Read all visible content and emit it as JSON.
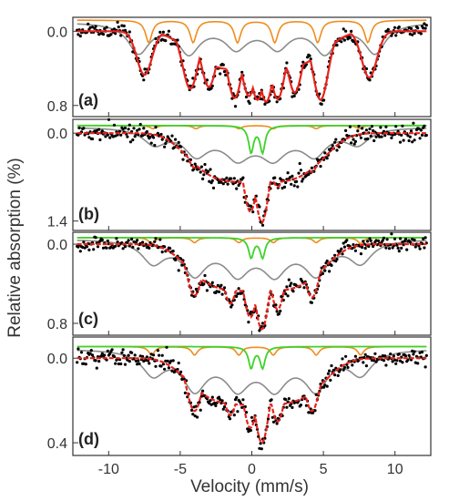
{
  "chart_data": {
    "type": "scatter",
    "ylabel": "Relative absorption (%)",
    "xlabel": "Velocity (mm/s)",
    "xlim": [
      -12.5,
      12.5
    ],
    "xticks": [
      -10,
      -5,
      0,
      5,
      10
    ],
    "colors": {
      "points": "#000000",
      "fit": "#e8221b",
      "gray_component": "#8c8c8c",
      "orange_component": "#f08c1e",
      "green_component": "#3ed22a"
    },
    "panels": [
      {
        "label": "(a)",
        "ylim": [
          0.92,
          -0.15
        ],
        "yticks": [
          0.0,
          0.8
        ],
        "ytick_labels": [
          "0.0",
          "0.8"
        ],
        "data": {
          "gray_sextet": {
            "center": 0.35,
            "lines": [
              -7.9,
              -4.4,
              -1.1,
              1.8,
              5.1,
              8.6
            ],
            "depths": [
              0.32,
              0.3,
              0.22,
              0.22,
              0.3,
              0.32
            ],
            "width": 1.8,
            "envelope_depth": 0.05
          },
          "orange_sextet": {
            "lines": [
              -7.2,
              -4.1,
              -1.0,
              1.6,
              4.6,
              8.1
            ],
            "depths": [
              0.24,
              0.24,
              0.24,
              0.24,
              0.24,
              0.24
            ],
            "width": 0.55
          },
          "fit_dips": [
            {
              "x": -7.5,
              "depth": 0.47
            },
            {
              "x": -4.3,
              "depth": 0.62
            },
            {
              "x": -3.0,
              "depth": 0.6
            },
            {
              "x": -1.2,
              "depth": 0.72
            },
            {
              "x": -0.2,
              "depth": 0.7
            },
            {
              "x": 0.4,
              "depth": 0.74
            },
            {
              "x": 1.0,
              "depth": 0.76
            },
            {
              "x": 1.8,
              "depth": 0.73
            },
            {
              "x": 3.0,
              "depth": 0.66
            },
            {
              "x": 4.8,
              "depth": 0.74
            },
            {
              "x": 8.2,
              "depth": 0.5
            }
          ]
        }
      },
      {
        "label": "(b)",
        "ylim": [
          1.55,
          -0.22
        ],
        "yticks": [
          0.0,
          1.4
        ],
        "ytick_labels": [
          "0.0",
          "1.4"
        ],
        "data": {
          "gray_sextet": {
            "lines": [
              -6.8,
              -3.9,
              -1.0,
              1.5,
              4.4,
              7.4
            ],
            "depths": [
              0.24,
              0.34,
              0.3,
              0.3,
              0.34,
              0.24
            ],
            "width": 1.9,
            "envelope_depth": 0.2
          },
          "orange_sextet": {
            "lines": [
              -6.9,
              -3.9,
              -0.9,
              1.5,
              4.5,
              7.5
            ],
            "depths": [
              0.05,
              0.05,
              0.05,
              0.05,
              0.05,
              0.05
            ],
            "width": 0.5
          },
          "green_doublet": {
            "lines": [
              -0.05,
              0.75
            ],
            "depth": 0.42,
            "width": 0.42
          },
          "fit_dips": [
            {
              "x": -4.0,
              "depth": 0.55
            },
            {
              "x": -1.5,
              "depth": 0.78
            },
            {
              "x": -0.1,
              "depth": 1.25
            },
            {
              "x": 0.7,
              "depth": 1.42
            },
            {
              "x": 1.8,
              "depth": 0.86
            },
            {
              "x": 4.2,
              "depth": 0.62
            }
          ]
        }
      },
      {
        "label": "(c)",
        "ylim": [
          0.92,
          -0.12
        ],
        "yticks": [
          0.0,
          0.8
        ],
        "ytick_labels": [
          "0.0",
          "0.8"
        ],
        "data": {
          "gray_sextet": {
            "lines": [
              -6.9,
              -4.0,
              -1.0,
              1.6,
              4.5,
              7.6
            ],
            "depths": [
              0.22,
              0.3,
              0.26,
              0.26,
              0.3,
              0.22
            ],
            "width": 1.9,
            "envelope_depth": 0.08
          },
          "orange_sextet": {
            "lines": [
              -7.0,
              -4.0,
              -0.9,
              1.5,
              4.5,
              7.6
            ],
            "depths": [
              0.06,
              0.05,
              0.05,
              0.05,
              0.05,
              0.06
            ],
            "width": 0.5
          },
          "green_doublet": {
            "lines": [
              -0.05,
              0.75
            ],
            "depth": 0.2,
            "width": 0.42
          },
          "fit_dips": [
            {
              "x": -4.0,
              "depth": 0.52
            },
            {
              "x": -1.5,
              "depth": 0.6
            },
            {
              "x": -0.1,
              "depth": 0.74
            },
            {
              "x": 0.7,
              "depth": 0.86
            },
            {
              "x": 1.8,
              "depth": 0.66
            },
            {
              "x": 4.2,
              "depth": 0.54
            }
          ]
        }
      },
      {
        "label": "(d)",
        "ylim": [
          0.46,
          -0.1
        ],
        "yticks": [
          0.0,
          0.4
        ],
        "ytick_labels": [
          "0.0",
          "0.4"
        ],
        "data": {
          "gray_sextet": {
            "lines": [
              -6.9,
              -4.0,
              -1.0,
              1.6,
              4.5,
              7.6
            ],
            "depths": [
              0.11,
              0.16,
              0.13,
              0.13,
              0.16,
              0.11
            ],
            "width": 1.9,
            "envelope_depth": 0.05
          },
          "orange_sextet": {
            "lines": [
              -7.0,
              -4.0,
              -0.9,
              1.5,
              4.5,
              7.6
            ],
            "depths": [
              0.04,
              0.04,
              0.04,
              0.04,
              0.04,
              0.04
            ],
            "width": 0.5
          },
          "green_doublet": {
            "lines": [
              -0.05,
              0.75
            ],
            "depth": 0.1,
            "width": 0.42
          },
          "fit_dips": [
            {
              "x": -4.0,
              "depth": 0.25
            },
            {
              "x": -1.5,
              "depth": 0.27
            },
            {
              "x": -0.1,
              "depth": 0.33
            },
            {
              "x": 0.7,
              "depth": 0.4
            },
            {
              "x": 1.8,
              "depth": 0.3
            },
            {
              "x": 4.2,
              "depth": 0.25
            }
          ]
        }
      }
    ]
  }
}
